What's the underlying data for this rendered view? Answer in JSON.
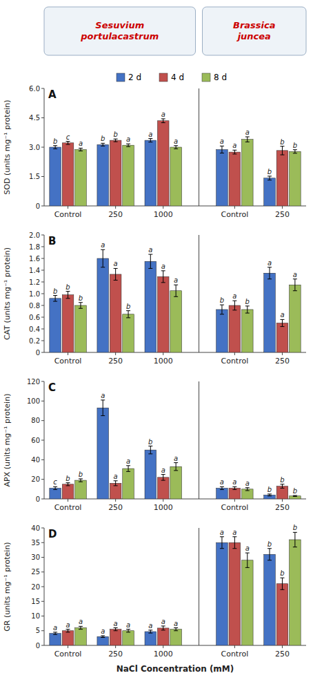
{
  "chart_data": [
    {
      "type": "bar",
      "title": "A",
      "ylabel": "SOD (units mg⁻¹ protein)",
      "categories": [
        "Control",
        "250",
        "1000",
        "Control",
        "250"
      ],
      "ylim": [
        0,
        6
      ],
      "yticks": [
        0,
        1.5,
        {
          "value": 3.0,
          "label": "3.0"
        },
        4.5,
        {
          "value": 6.0,
          "label": "6.0"
        }
      ],
      "grid": false,
      "legend": "top",
      "annotations": [
        {
          "text": "Sesuvium\nportulacastrum",
          "color": "#CC0000"
        },
        {
          "text": "Brassica\njuncea",
          "color": "#CC0000"
        }
      ],
      "series": [
        {
          "name": "2 d",
          "color": "#4472C4",
          "values": [
            3.0,
            3.13,
            3.35,
            2.88,
            1.42
          ],
          "errors": [
            0.08,
            0.07,
            0.09,
            0.18,
            0.1
          ],
          "letters": [
            "b",
            "b",
            "a",
            "a",
            "b"
          ]
        },
        {
          "name": "4 d",
          "color": "#C0504D",
          "values": [
            3.22,
            3.35,
            4.35,
            2.75,
            2.83
          ],
          "errors": [
            0.08,
            0.07,
            0.1,
            0.1,
            0.22
          ],
          "letters": [
            "c",
            "b",
            "a",
            "a",
            "b"
          ]
        },
        {
          "name": "8 d",
          "color": "#9BBB59",
          "values": [
            2.88,
            3.1,
            3.0,
            3.4,
            2.78
          ],
          "errors": [
            0.07,
            0.07,
            0.08,
            0.13,
            0.09
          ],
          "letters": [
            "a",
            "a",
            "a",
            "a",
            "b"
          ]
        }
      ]
    },
    {
      "type": "bar",
      "title": "B",
      "ylabel": "CAT (units mg⁻¹ protein)",
      "categories": [
        "Control",
        "250",
        "1000",
        "Control",
        "250"
      ],
      "ylim": [
        0,
        2.0
      ],
      "yticks": [
        0,
        0.2,
        0.4,
        0.6,
        0.8,
        {
          "value": 1.0,
          "label": "1.0"
        },
        1.2,
        1.4,
        1.6,
        1.8,
        {
          "value": 2.0,
          "label": "2.0"
        }
      ],
      "grid": false,
      "series": [
        {
          "color": "#4472C4",
          "values": [
            0.92,
            1.6,
            1.55,
            0.73,
            1.35
          ],
          "errors": [
            0.05,
            0.15,
            0.12,
            0.08,
            0.1
          ],
          "letters": [
            "b",
            "a",
            "a",
            "b",
            "a"
          ]
        },
        {
          "color": "#C0504D",
          "values": [
            0.98,
            1.33,
            1.29,
            0.8,
            0.5
          ],
          "errors": [
            0.06,
            0.1,
            0.1,
            0.08,
            0.06
          ],
          "letters": [
            "b",
            "a",
            "a",
            "a",
            "a"
          ]
        },
        {
          "color": "#9BBB59",
          "values": [
            0.8,
            0.65,
            1.05,
            0.73,
            1.15
          ],
          "errors": [
            0.05,
            0.06,
            0.1,
            0.06,
            0.1
          ],
          "letters": [
            "b",
            "b",
            "a",
            "b",
            "a"
          ]
        }
      ]
    },
    {
      "type": "bar",
      "title": "C",
      "ylabel": "APX (units mg⁻¹ protein)",
      "categories": [
        "Control",
        "250",
        "1000",
        "Control",
        "250"
      ],
      "ylim": [
        0,
        120
      ],
      "yticks": [
        0,
        20,
        40,
        60,
        80,
        100,
        120
      ],
      "grid": false,
      "series": [
        {
          "color": "#4472C4",
          "values": [
            11,
            93,
            50,
            11,
            4
          ],
          "errors": [
            1.5,
            8.0,
            4.0,
            1.5,
            1.0
          ],
          "letters": [
            "c",
            "a",
            "b",
            "a",
            "b"
          ]
        },
        {
          "color": "#C0504D",
          "values": [
            15,
            16,
            22,
            11,
            13
          ],
          "errors": [
            1.5,
            2.5,
            3.0,
            1.5,
            2.0
          ],
          "letters": [
            "b",
            "a",
            "a",
            "a",
            "b"
          ]
        },
        {
          "color": "#9BBB59",
          "values": [
            19,
            31,
            33,
            10,
            3
          ],
          "errors": [
            1.5,
            3.0,
            4.0,
            1.5,
            0.5
          ],
          "letters": [
            "b",
            "a",
            "a",
            "a",
            "b"
          ]
        }
      ]
    },
    {
      "type": "bar",
      "title": "D",
      "ylabel": "GR (units mg⁻¹ protein)",
      "xlabel": "NaCl Concentration (mM)",
      "categories": [
        "Control",
        "250",
        "1000",
        "Control",
        "250"
      ],
      "ylim": [
        0,
        40
      ],
      "yticks": [
        0,
        5,
        10,
        15,
        20,
        25,
        30,
        35,
        40
      ],
      "grid": false,
      "series": [
        {
          "color": "#4472C4",
          "values": [
            4.1,
            3.0,
            4.7,
            35,
            31
          ],
          "errors": [
            0.4,
            0.3,
            0.5,
            2.0,
            2.0
          ],
          "letters": [
            "a",
            "a",
            "a",
            "a",
            "b"
          ]
        },
        {
          "color": "#C0504D",
          "values": [
            5.0,
            5.5,
            5.9,
            35,
            21
          ],
          "errors": [
            0.5,
            0.5,
            0.7,
            2.0,
            2.0
          ],
          "letters": [
            "a",
            "a",
            "a",
            "a",
            "b"
          ]
        },
        {
          "color": "#9BBB59",
          "values": [
            6.0,
            5.0,
            5.5,
            29,
            36
          ],
          "errors": [
            0.5,
            0.5,
            0.5,
            2.5,
            2.5
          ],
          "letters": [
            "a",
            "a",
            "a",
            "a",
            "b"
          ]
        }
      ]
    }
  ]
}
